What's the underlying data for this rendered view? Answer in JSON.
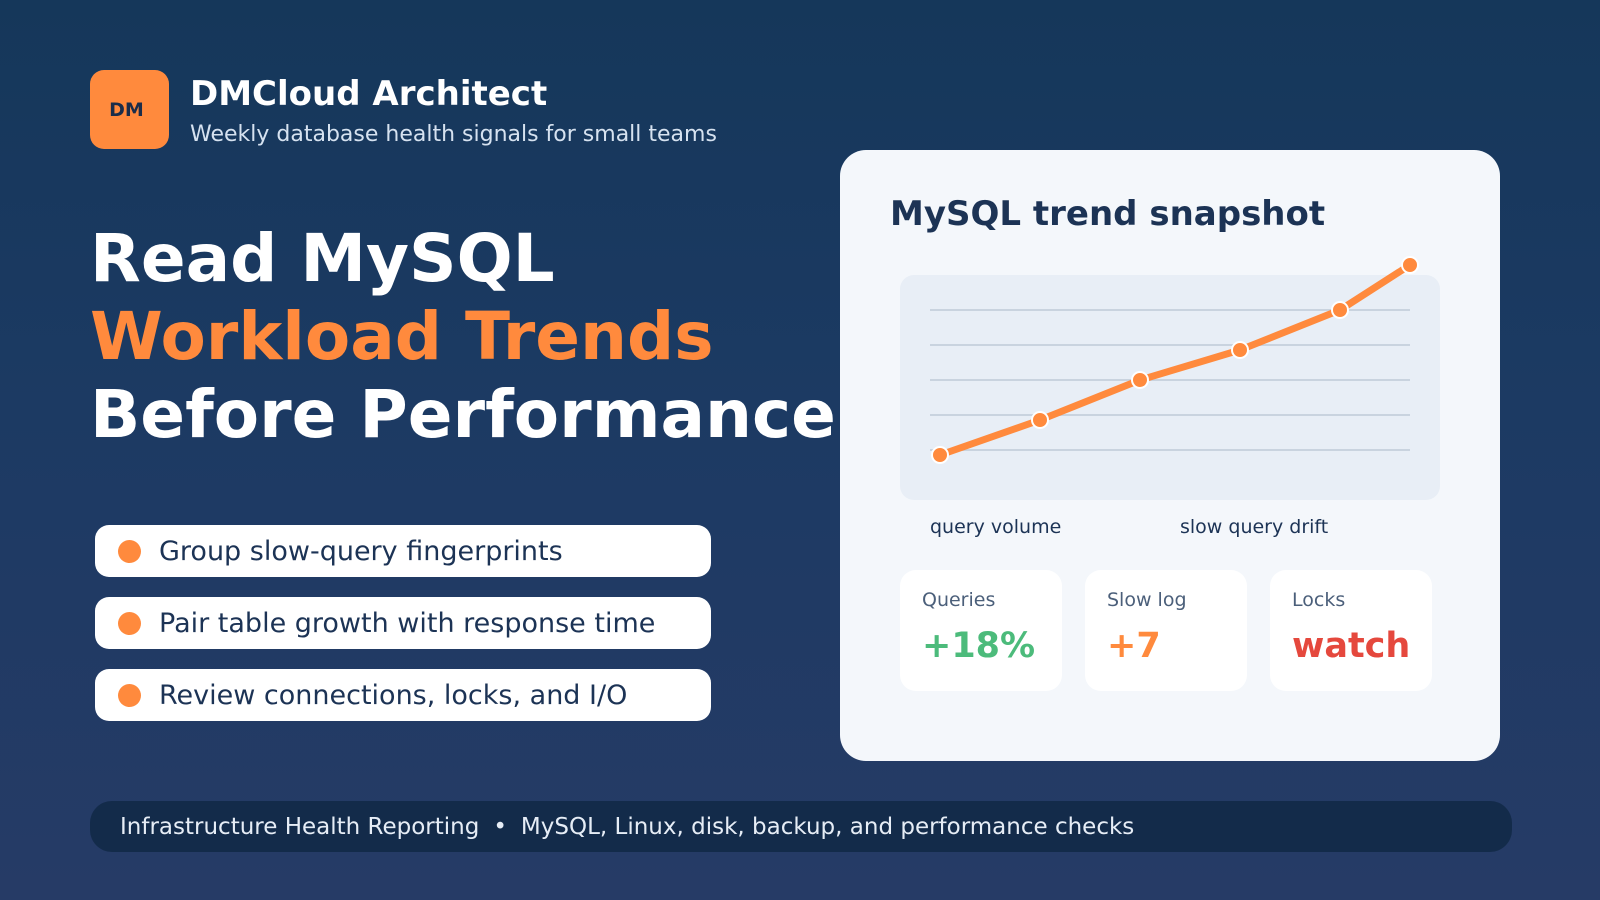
{
  "brand": {
    "badge": "DM",
    "name": "DMCloud Architect",
    "tagline": "Weekly database health signals for small teams",
    "accent_color": "#ff8a3d"
  },
  "headline": {
    "line1": "Read MySQL",
    "line2": "Workload Trends",
    "line3": "Before Performance Slips"
  },
  "bullets": [
    {
      "text": "Group slow-query fingerprints"
    },
    {
      "text": "Pair table growth with response time"
    },
    {
      "text": "Review connections, locks, and I/O"
    }
  ],
  "card": {
    "title": "MySQL trend snapshot",
    "chart_labels": [
      "query volume",
      "slow query drift"
    ],
    "stats": [
      {
        "label": "Queries",
        "value": "+18%",
        "color": "#4cbb7b"
      },
      {
        "label": "Slow log",
        "value": "+7",
        "color": "#ff8a3d"
      },
      {
        "label": "Locks",
        "value": "watch",
        "color": "#e5483d"
      }
    ]
  },
  "footer": {
    "left": "Infrastructure Health Reporting",
    "separator": "•",
    "right": "MySQL, Linux, disk, backup, and performance checks"
  }
}
